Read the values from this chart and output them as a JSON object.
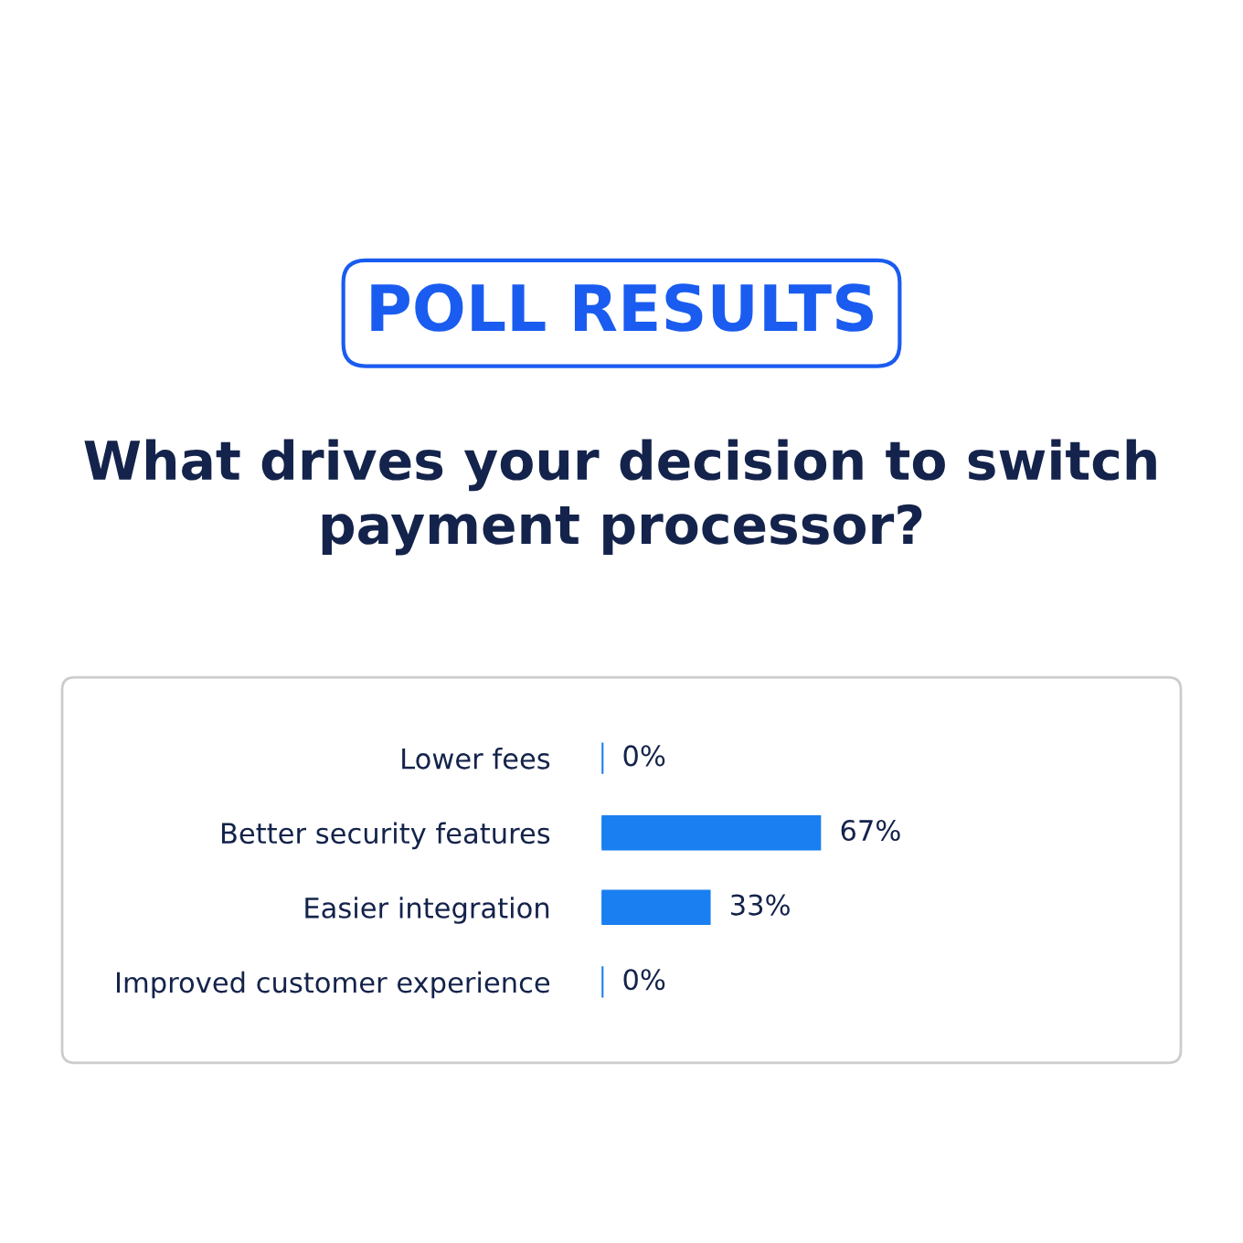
{
  "chart_data": {
    "type": "bar",
    "orientation": "horizontal",
    "subtitle": "POLL RESULTS",
    "title": "What drives your decision to switch payment processor?",
    "categories": [
      "Lower fees",
      "Better security features",
      "Easier integration",
      "Improved customer experience"
    ],
    "values": [
      0,
      67,
      33,
      0
    ],
    "value_labels": [
      "0%",
      "67%",
      "33%",
      "0%"
    ],
    "color": "#1a7ff0",
    "tick_labels": "y",
    "grid": false,
    "legend": false
  }
}
